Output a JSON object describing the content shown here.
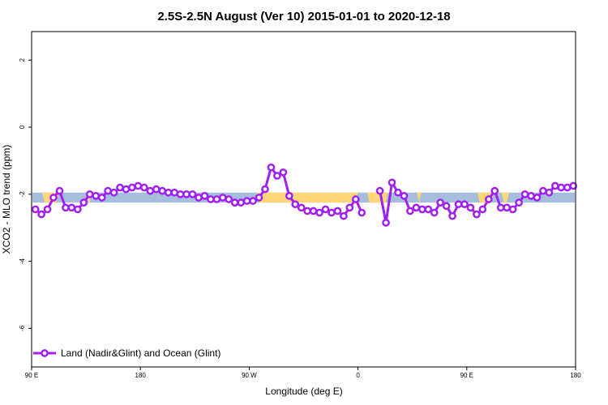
{
  "chart_data": {
    "type": "line",
    "title": "2.5S-2.5N August (Ver 10)   2015-01-01 to 2020-12-18",
    "xlabel": "Longitude (deg E)",
    "ylabel": "XCO2 - MLO trend (ppm)",
    "xlim": [
      90,
      450
    ],
    "ylim": [
      -7.15,
      2.85
    ],
    "x_ticks": [
      {
        "value": 90,
        "label": "90 E"
      },
      {
        "value": 162,
        "label": "180"
      },
      {
        "value": 234,
        "label": "90 W"
      },
      {
        "value": 306,
        "label": "0"
      },
      {
        "value": 378,
        "label": "90 E"
      },
      {
        "value": 450,
        "label": "180"
      }
    ],
    "y_ticks": [
      {
        "value": 2,
        "label": "2"
      },
      {
        "value": 0,
        "label": "0"
      },
      {
        "value": -2,
        "label": "-2"
      },
      {
        "value": -4,
        "label": "-4"
      },
      {
        "value": -6,
        "label": "-6"
      }
    ],
    "grid": false,
    "legend": {
      "position": "bottom-left",
      "entries": [
        "Land (Nadir&Glint) and Ocean (Glint)"
      ]
    },
    "surface_band": {
      "y_range": [
        -2.25,
        -1.95
      ],
      "ocean_color": "#a7bddd",
      "land_color": "#ffd779",
      "land_segments": [
        [
          97,
          108
        ],
        [
          126,
          130
        ],
        [
          239,
          306
        ],
        [
          312,
          326
        ],
        [
          345,
          348
        ],
        [
          385,
          396
        ],
        [
          401,
          406
        ]
      ]
    },
    "series": [
      {
        "name": "Land (Nadir&Glint) and Ocean (Glint)",
        "color": "#a020f0",
        "segments": [
          {
            "x": [
              92.5,
              96.5,
              100.5,
              104.5,
              108.5,
              112.5,
              116.5,
              120.5,
              124.5,
              128.5,
              132.5,
              136.5,
              140.5,
              144.5,
              148.5,
              152.5,
              156.5,
              160.5,
              164.5,
              168.5,
              172.5,
              176.5,
              180.5,
              184.5,
              188.5,
              192.5,
              196.5,
              200.5,
              204.5,
              208.5,
              212.5,
              216.5,
              220.5,
              224.5,
              228.5,
              232.5,
              236.5,
              240.5,
              244.5,
              248.5,
              252.5,
              256.5,
              260.5,
              264.5,
              268.5,
              272.5,
              276.5,
              280.5,
              284.5,
              288.5,
              292.5,
              296.5,
              300.5,
              304.5,
              308.5
            ],
            "y": [
              -2.45,
              -2.6,
              -2.45,
              -2.1,
              -1.9,
              -2.4,
              -2.4,
              -2.45,
              -2.25,
              -2.0,
              -2.05,
              -2.1,
              -1.9,
              -1.95,
              -1.8,
              -1.85,
              -1.8,
              -1.75,
              -1.8,
              -1.9,
              -1.85,
              -1.9,
              -1.95,
              -1.95,
              -2.0,
              -2.0,
              -2.0,
              -2.1,
              -2.05,
              -2.15,
              -2.15,
              -2.1,
              -2.15,
              -2.25,
              -2.25,
              -2.2,
              -2.2,
              -2.1,
              -1.85,
              -1.2,
              -1.45,
              -1.35,
              -2.05,
              -2.3,
              -2.4,
              -2.5,
              -2.5,
              -2.55,
              -2.45,
              -2.55,
              -2.5,
              -2.65,
              -2.4,
              -2.15,
              -2.55
            ]
          },
          {
            "x": [
              320.5,
              324.5,
              328.5,
              332.5,
              336.5,
              340.5,
              344.5,
              348.5,
              352.5,
              356.5,
              360.5,
              364.5,
              368.5,
              372.5,
              376.5,
              380.5,
              384.5,
              388.5,
              392.5,
              396.5,
              400.5,
              404.5,
              408.5,
              412.5,
              416.5,
              420.5,
              424.5,
              428.5,
              432.5,
              436.5,
              440.5,
              444.5,
              448.5
            ],
            "y": [
              -1.9,
              -2.85,
              -1.65,
              -1.95,
              -2.05,
              -2.5,
              -2.4,
              -2.45,
              -2.45,
              -2.55,
              -2.25,
              -2.35,
              -2.65,
              -2.3,
              -2.3,
              -2.4,
              -2.6,
              -2.45,
              -2.15,
              -1.9,
              -2.4,
              -2.4,
              -2.45,
              -2.25,
              -2.0,
              -2.05,
              -2.1,
              -1.9,
              -1.95,
              -1.75,
              -1.8,
              -1.8,
              -1.75
            ]
          }
        ]
      }
    ]
  }
}
